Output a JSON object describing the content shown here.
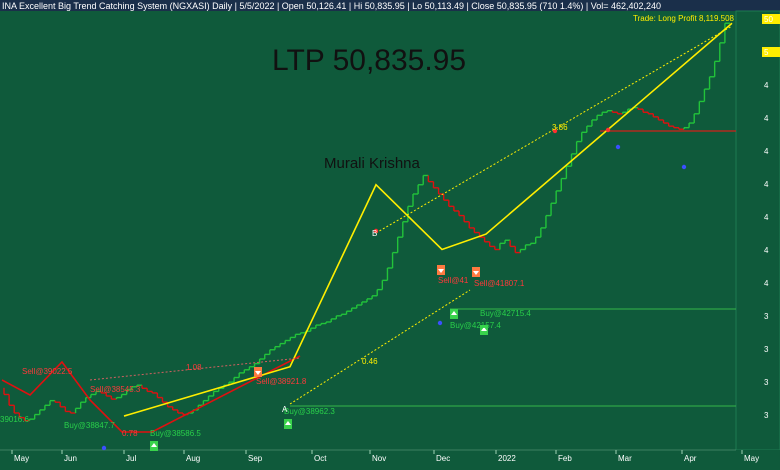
{
  "header": {
    "title": "INA Excellent Big Trend Catching System (NGXASI) Daily",
    "date": "5/5/2022",
    "open": "Open 50,126.41",
    "hi": "Hi 50,835.95",
    "lo": "Lo 50,113.49",
    "close": "Close 50,835.95 (710 1.4%)",
    "vol": "Vol= 462,402,240"
  },
  "overlay": {
    "ltp": "LTP 50,835.95",
    "author": "Murali Krishna",
    "trade_note": "Trade: Long Profit 8,119.508"
  },
  "colors": {
    "background": "#0f5a3b",
    "bull": "#22c33a",
    "bear": "#e01010",
    "trend": "#ffee00",
    "text_buy": "#29d04a",
    "text_sell": "#ff3a3a",
    "support": "#36b54a",
    "resistance": "#d0201a"
  },
  "chart_data": {
    "type": "line",
    "x_ticks": [
      "May",
      "Jun",
      "Jul",
      "Aug",
      "Sep",
      "Oct",
      "Nov",
      "Dec",
      "2022",
      "Feb",
      "Mar",
      "Apr",
      "May"
    ],
    "y_axis_partial_labels": [
      "50",
      "5",
      "4",
      "4",
      "4",
      "4",
      "4",
      "4",
      "4",
      "3",
      "3",
      "3",
      "3"
    ],
    "series": [
      {
        "values": [
          39016,
          38800,
          38450,
          38200,
          38050,
          37950,
          38000,
          38150,
          38300,
          38450,
          38600,
          38550,
          38400,
          38250,
          38200,
          38350,
          38550,
          38700,
          38800,
          38900,
          38850,
          38750,
          38650,
          38700,
          38800,
          38950,
          39050,
          39100,
          39000,
          38900,
          38850,
          38700,
          38550,
          38400,
          38300,
          38200,
          38150,
          38200,
          38300,
          38450,
          38600,
          38750,
          38900,
          39000,
          39100,
          39200,
          39350,
          39500,
          39600,
          39700,
          39800,
          39950,
          40100,
          40250,
          40350,
          40450,
          40550,
          40650,
          40750,
          40800,
          40850,
          40950,
          41050,
          41100,
          41150,
          41250,
          41350,
          41400,
          41500,
          41600,
          41700,
          41800,
          41900,
          42000,
          42200,
          42500,
          42900,
          43400,
          43900,
          44400,
          44900,
          45300,
          45600,
          45900,
          45700,
          45500,
          45300,
          45100,
          44900,
          44750,
          44600,
          44400,
          44200,
          44050,
          43900,
          43750,
          43600,
          43500,
          43700,
          43800,
          43600,
          43400,
          43500,
          43650,
          43700,
          43900,
          44200,
          44600,
          45000,
          45400,
          45800,
          46200,
          46600,
          47000,
          47300,
          47500,
          47700,
          47850,
          47950,
          48000,
          47950,
          47900,
          47950,
          48050,
          48100,
          48050,
          47950,
          47900,
          47800,
          47700,
          47600,
          47500,
          47450,
          47400,
          47450,
          47600,
          47900,
          48300,
          48700,
          49100,
          49600,
          50200,
          50836
        ]
      }
    ],
    "trend_line_points": [
      {
        "x": "Jul",
        "y": 38100
      },
      {
        "x": "Sep",
        "y": 39700
      },
      {
        "x": "Nov",
        "y": 45600
      },
      {
        "x": "Dec",
        "y": 43500
      },
      {
        "x": "2022",
        "y": 44000
      },
      {
        "x": "May",
        "y": 50836
      }
    ],
    "annotations": [
      {
        "text": "Sell@39022.5",
        "kind": "sell"
      },
      {
        "text": "Sell@38545.3",
        "kind": "sell"
      },
      {
        "text": "Sell@38921.8",
        "kind": "sell"
      },
      {
        "text": "Sell@41",
        "kind": "sell"
      },
      {
        "text": "Sell@41807.1",
        "kind": "sell"
      },
      {
        "text": "Buy@38847.7",
        "kind": "buy"
      },
      {
        "text": "Buy@38586.5",
        "kind": "buy"
      },
      {
        "text": "Buy@38962.3",
        "kind": "buy"
      },
      {
        "text": "Buy@42157.4",
        "kind": "buy"
      },
      {
        "text": "Buy@42715.4",
        "kind": "buy"
      },
      {
        "text": "39016.6",
        "kind": "buy"
      },
      {
        "text": "1.08",
        "kind": "sell"
      },
      {
        "text": "0.78",
        "kind": "sell"
      },
      {
        "text": "0.46",
        "kind": "trend"
      },
      {
        "text": "3.86",
        "kind": "trend"
      },
      {
        "text": "B",
        "kind": "point"
      },
      {
        "text": "A",
        "kind": "point"
      }
    ]
  }
}
